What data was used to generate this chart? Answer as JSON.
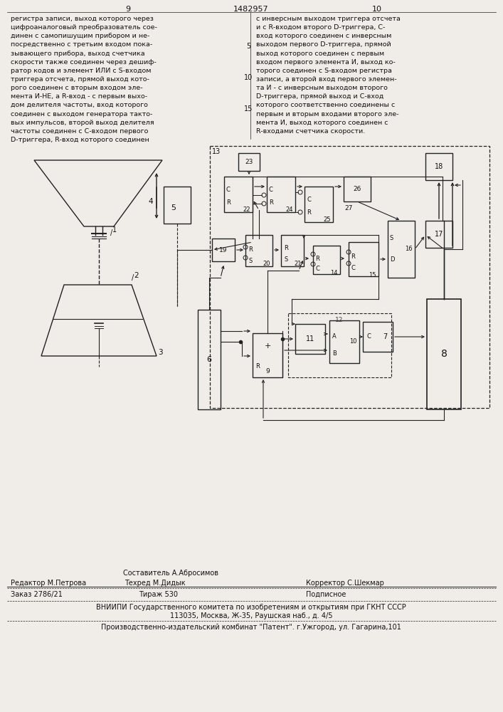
{
  "patent_number": "1482957",
  "page_left": "9",
  "page_right": "10",
  "text_left": "регистра записи, выход которого через\nцифроаналоговый преобразователь сое-\nдинен с самопишущим прибором и не-\nпосредственно с третьим входом пока-\nзывающего прибора, выход счетчика\nскорости также соединен через дешиф-\nратор кодов и элемент ИЛИ с S-входом\nтриггера отсчета, прямой выход кото-\nрого соединен с вторым входом эле-\nмента И-НЕ, а R-вход - с первым выхо-\nдом делителя частоты, вход которого\nсоединен с выходом генератора такто-\nвых импульсов, второй выход делителя\nчастоты соединен с С-входом первого\nD-триггера, R-вход которого соединен",
  "text_right": "с инверсным выходом триггера отсчета\nи с R-входом второго D-триггера, С-\nвход которого соединен с инверсным\nвыходом первого D-триггера, прямой\nвыход которого соединен с первым\nвходом первого элемента И, выход ко-\nторого соединен с S-входом регистра\nзаписи, а второй вход первого элемен-\nта И - с инверсным выходом второго\nD-триггера, прямой выход и С-вход\nкоторого соответственно соединены с\nпервым и вторым входами второго эле-\nмента И, выход которого соединен с\nR-входами счетчика скорости.",
  "lnum_5": "5",
  "lnum_10": "10",
  "lnum_15": "15",
  "footer_sestavitel": "Составитель А.Абросимов",
  "footer_editor": "Редактор М.Петрова",
  "footer_tech": "Техред М.Дидык",
  "footer_corrector": "Корректор С.Шекмар",
  "footer_order": "Заказ 2786/21",
  "footer_tirazh": "Тираж 530",
  "footer_podpisnoe": "Подписное",
  "footer_vniiipi": "ВНИИПИ Государственного комитета по изобретениям и открытиям при ГКНТ СССР",
  "footer_address": "113035, Москва, Ж-35, Раушская наб., д. 4/5",
  "footer_kombinat": "Производственно-издательский комбинат \"Патент\". г.Ужгород, ул. Гагарина,101",
  "bg_color": "#f0ede8",
  "line_color": "#222222",
  "text_color": "#111111"
}
